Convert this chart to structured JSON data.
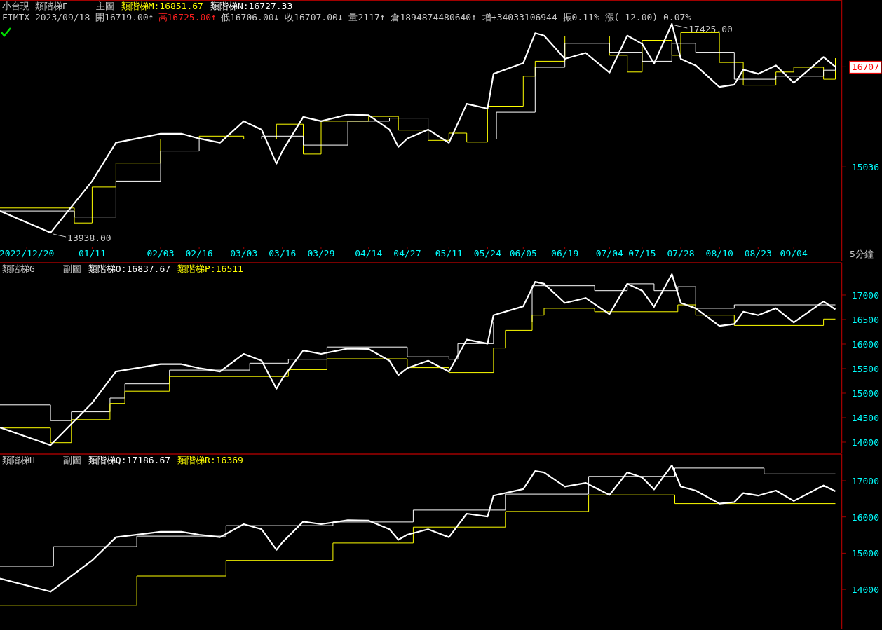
{
  "chart_data": [
    {
      "type": "line",
      "title": "小台現 類階梯F",
      "subtitle": "主圖",
      "xlabel": "5分鐘",
      "xlim": [
        "2022-12-11",
        "2023-09-20"
      ],
      "ylim": [
        13728,
        17817
      ],
      "yticks": [
        15036,
        16707
      ],
      "xticks": [
        {
          "value": "2022-12-20",
          "label": "2022/12/20"
        },
        {
          "value": "2023-01-11",
          "label": "01/11"
        },
        {
          "value": "2023-02-03",
          "label": "02/03"
        },
        {
          "value": "2023-02-16",
          "label": "02/16"
        },
        {
          "value": "2023-03-03",
          "label": "03/03"
        },
        {
          "value": "2023-03-16",
          "label": "03/16"
        },
        {
          "value": "2023-03-29",
          "label": "03/29"
        },
        {
          "value": "2023-04-14",
          "label": "04/14"
        },
        {
          "value": "2023-04-27",
          "label": "04/27"
        },
        {
          "value": "2023-05-11",
          "label": "05/11"
        },
        {
          "value": "2023-05-24",
          "label": "05/24"
        },
        {
          "value": "2023-06-05",
          "label": "06/05"
        },
        {
          "value": "2023-06-19",
          "label": "06/19"
        },
        {
          "value": "2023-07-04",
          "label": "07/04"
        },
        {
          "value": "2023-07-15",
          "label": "07/15"
        },
        {
          "value": "2023-07-28",
          "label": "07/28"
        },
        {
          "value": "2023-08-10",
          "label": "08/10"
        },
        {
          "value": "2023-08-23",
          "label": "08/23"
        },
        {
          "value": "2023-09-04",
          "label": "09/04"
        }
      ],
      "annotations": [
        "FIMTX 2023/09/18 開16719.00↑",
        "高16725.00↑",
        "低16706.00↓ 收16707.00↓ 量2117↑ 倉1894874480640↑ 增+34033106944 振0.11% 漲(-12.00)-0.07%",
        {
          "text": "17425.00",
          "x": "2023-07-25",
          "y": 17425
        },
        {
          "text": "13938.00",
          "x": "2022-12-28",
          "y": 13938
        }
      ],
      "series": [
        {
          "type": "step",
          "name": "類階梯M:16851.67",
          "color": "#ffff00",
          "x": [
            "2022-12-11",
            "2023-01-05",
            "2023-01-11",
            "2023-01-19",
            "2023-02-03",
            "2023-02-16",
            "2023-03-03",
            "2023-03-14",
            "2023-03-23",
            "2023-03-29",
            "2023-04-14",
            "2023-04-24",
            "2023-05-04",
            "2023-05-11",
            "2023-05-17",
            "2023-05-24",
            "2023-06-05",
            "2023-06-09",
            "2023-06-19",
            "2023-07-04",
            "2023-07-10",
            "2023-07-15",
            "2023-07-25",
            "2023-07-28",
            "2023-08-10",
            "2023-08-18",
            "2023-08-29",
            "2023-09-04",
            "2023-09-14",
            "2023-09-18"
          ],
          "values": [
            14350,
            14100,
            14700,
            15100,
            15500,
            15550,
            15500,
            15750,
            15250,
            15800,
            15880,
            15650,
            15480,
            15600,
            15450,
            16050,
            16550,
            16800,
            17220,
            16900,
            16620,
            17150,
            16900,
            17280,
            16780,
            16400,
            16620,
            16700,
            16500,
            16851.67
          ]
        },
        {
          "type": "step",
          "name": "類階梯N:16727.33",
          "color": "#ffffff",
          "x": [
            "2022-12-11",
            "2023-01-05",
            "2023-01-19",
            "2023-02-03",
            "2023-02-16",
            "2023-03-09",
            "2023-03-23",
            "2023-04-07",
            "2023-04-21",
            "2023-05-04",
            "2023-05-17",
            "2023-05-27",
            "2023-06-09",
            "2023-06-19",
            "2023-07-04",
            "2023-07-15",
            "2023-07-25",
            "2023-08-02",
            "2023-08-15",
            "2023-08-29",
            "2023-09-14",
            "2023-09-18"
          ],
          "values": [
            14300,
            14200,
            14800,
            15300,
            15500,
            15550,
            15400,
            15800,
            15850,
            15500,
            15500,
            15950,
            16700,
            17100,
            16950,
            16800,
            17100,
            16950,
            16500,
            16550,
            16650,
            16727.33
          ]
        },
        {
          "type": "line",
          "color": "#ffffff",
          "x": [
            "2022-12-11",
            "2022-12-28",
            "2023-01-11",
            "2023-01-19",
            "2023-02-03",
            "2023-02-10",
            "2023-02-16",
            "2023-02-23",
            "2023-03-03",
            "2023-03-09",
            "2023-03-14",
            "2023-03-16",
            "2023-03-23",
            "2023-03-29",
            "2023-04-07",
            "2023-04-14",
            "2023-04-21",
            "2023-04-24",
            "2023-04-27",
            "2023-05-04",
            "2023-05-11",
            "2023-05-17",
            "2023-05-24",
            "2023-05-26",
            "2023-06-05",
            "2023-06-09",
            "2023-06-12",
            "2023-06-19",
            "2023-06-26",
            "2023-07-04",
            "2023-07-10",
            "2023-07-15",
            "2023-07-19",
            "2023-07-25",
            "2023-07-28",
            "2023-08-02",
            "2023-08-10",
            "2023-08-15",
            "2023-08-18",
            "2023-08-23",
            "2023-08-29",
            "2023-09-04",
            "2023-09-14",
            "2023-09-18"
          ],
          "values": [
            14300,
            13938,
            14800,
            15440,
            15590,
            15590,
            15510,
            15440,
            15800,
            15660,
            15090,
            15300,
            15870,
            15800,
            15910,
            15900,
            15660,
            15370,
            15510,
            15660,
            15440,
            16090,
            16010,
            16590,
            16770,
            17270,
            17230,
            16840,
            16940,
            16610,
            17230,
            17090,
            16760,
            17425,
            16840,
            16730,
            16370,
            16410,
            16660,
            16590,
            16730,
            16440,
            16870,
            16707
          ]
        }
      ]
    },
    {
      "type": "line",
      "title": "類階梯G",
      "subtitle": "副圖",
      "tick_labels": "y",
      "xlim": [
        "2022-12-11",
        "2023-09-20"
      ],
      "ylim": [
        13800,
        17657
      ],
      "yticks": [
        14000,
        14500,
        15000,
        15500,
        16000,
        16500,
        17000
      ],
      "series": [
        {
          "type": "step",
          "name": "類階梯O:16837.67",
          "color": "#ffffff",
          "x": [
            "2022-12-11",
            "2022-12-28",
            "2023-01-04",
            "2023-01-17",
            "2023-01-22",
            "2023-02-06",
            "2023-03-05",
            "2023-03-18",
            "2023-03-31",
            "2023-04-27",
            "2023-05-11",
            "2023-05-14",
            "2023-05-26",
            "2023-06-08",
            "2023-06-29",
            "2023-07-10",
            "2023-07-19",
            "2023-07-27",
            "2023-08-02",
            "2023-08-15",
            "2023-09-18"
          ],
          "values": [
            14760,
            14440,
            14620,
            14900,
            15190,
            15470,
            15610,
            15690,
            15940,
            15740,
            15690,
            16010,
            16450,
            17190,
            17090,
            17230,
            17090,
            17170,
            16730,
            16800,
            16800
          ]
        },
        {
          "type": "step",
          "name": "類階梯P:16511",
          "color": "#ffff00",
          "x": [
            "2022-12-11",
            "2022-12-28",
            "2023-01-04",
            "2023-01-17",
            "2023-01-22",
            "2023-02-06",
            "2023-03-18",
            "2023-03-31",
            "2023-04-27",
            "2023-05-11",
            "2023-05-26",
            "2023-05-30",
            "2023-06-08",
            "2023-06-12",
            "2023-06-29",
            "2023-07-27",
            "2023-08-02",
            "2023-08-15",
            "2023-09-14",
            "2023-09-18"
          ],
          "values": [
            14290,
            13990,
            14460,
            14790,
            15040,
            15340,
            15480,
            15700,
            15520,
            15420,
            15920,
            16280,
            16590,
            16730,
            16660,
            16800,
            16590,
            16380,
            16510,
            16510
          ]
        },
        {
          "type": "line",
          "color": "#ffffff",
          "x": [
            "2022-12-11",
            "2022-12-28",
            "2023-01-11",
            "2023-01-19",
            "2023-02-03",
            "2023-02-10",
            "2023-02-16",
            "2023-02-23",
            "2023-03-03",
            "2023-03-09",
            "2023-03-14",
            "2023-03-16",
            "2023-03-23",
            "2023-03-29",
            "2023-04-07",
            "2023-04-14",
            "2023-04-21",
            "2023-04-24",
            "2023-04-27",
            "2023-05-04",
            "2023-05-11",
            "2023-05-17",
            "2023-05-24",
            "2023-05-26",
            "2023-06-05",
            "2023-06-09",
            "2023-06-12",
            "2023-06-19",
            "2023-06-26",
            "2023-07-04",
            "2023-07-10",
            "2023-07-15",
            "2023-07-19",
            "2023-07-25",
            "2023-07-28",
            "2023-08-02",
            "2023-08-10",
            "2023-08-15",
            "2023-08-18",
            "2023-08-23",
            "2023-08-29",
            "2023-09-04",
            "2023-09-14",
            "2023-09-18"
          ],
          "values": [
            14300,
            13938,
            14800,
            15440,
            15590,
            15590,
            15510,
            15440,
            15800,
            15660,
            15090,
            15300,
            15870,
            15800,
            15910,
            15900,
            15660,
            15370,
            15510,
            15660,
            15440,
            16090,
            16010,
            16590,
            16770,
            17270,
            17230,
            16840,
            16940,
            16610,
            17230,
            17090,
            16760,
            17425,
            16840,
            16730,
            16370,
            16410,
            16660,
            16590,
            16730,
            16440,
            16870,
            16707
          ]
        }
      ]
    },
    {
      "type": "line",
      "title": "類階梯H",
      "subtitle": "副圖",
      "tick_labels": "y",
      "xlim": [
        "2022-12-11",
        "2023-09-20"
      ],
      "ylim": [
        12957,
        17735
      ],
      "yticks": [
        14000,
        15000,
        16000,
        17000
      ],
      "series": [
        {
          "type": "step",
          "name": "類階梯Q:17186.67",
          "color": "#ffffff",
          "x": [
            "2022-12-11",
            "2022-12-29",
            "2023-01-26",
            "2023-02-25",
            "2023-04-02",
            "2023-04-29",
            "2023-05-30",
            "2023-06-27",
            "2023-07-26",
            "2023-08-25",
            "2023-09-18"
          ],
          "values": [
            14640,
            15180,
            15470,
            15760,
            15860,
            16190,
            16630,
            17120,
            17350,
            17186.67,
            17186.67
          ]
        },
        {
          "type": "step",
          "name": "類階梯R:16369",
          "color": "#ffff00",
          "x": [
            "2022-12-11",
            "2023-01-26",
            "2023-02-25",
            "2023-04-02",
            "2023-04-29",
            "2023-05-30",
            "2023-06-27",
            "2023-07-26",
            "2023-09-18"
          ],
          "values": [
            13560,
            14370,
            14800,
            15280,
            15720,
            16150,
            16610,
            16369,
            16369
          ]
        },
        {
          "type": "line",
          "color": "#ffffff",
          "x": [
            "2022-12-11",
            "2022-12-28",
            "2023-01-11",
            "2023-01-19",
            "2023-02-03",
            "2023-02-10",
            "2023-02-16",
            "2023-02-23",
            "2023-03-03",
            "2023-03-09",
            "2023-03-14",
            "2023-03-16",
            "2023-03-23",
            "2023-03-29",
            "2023-04-07",
            "2023-04-14",
            "2023-04-21",
            "2023-04-24",
            "2023-04-27",
            "2023-05-04",
            "2023-05-11",
            "2023-05-17",
            "2023-05-24",
            "2023-05-26",
            "2023-06-05",
            "2023-06-09",
            "2023-06-12",
            "2023-06-19",
            "2023-06-26",
            "2023-07-04",
            "2023-07-10",
            "2023-07-15",
            "2023-07-19",
            "2023-07-25",
            "2023-07-28",
            "2023-08-02",
            "2023-08-10",
            "2023-08-15",
            "2023-08-18",
            "2023-08-23",
            "2023-08-29",
            "2023-09-04",
            "2023-09-14",
            "2023-09-18"
          ],
          "values": [
            14300,
            13938,
            14800,
            15440,
            15590,
            15590,
            15510,
            15440,
            15800,
            15660,
            15090,
            15300,
            15870,
            15800,
            15910,
            15900,
            15660,
            15370,
            15510,
            15660,
            15440,
            16090,
            16010,
            16590,
            16770,
            17270,
            17230,
            16840,
            16940,
            16610,
            17230,
            17090,
            16760,
            17425,
            16840,
            16730,
            16370,
            16410,
            16660,
            16590,
            16730,
            16440,
            16870,
            16707
          ]
        }
      ]
    }
  ]
}
